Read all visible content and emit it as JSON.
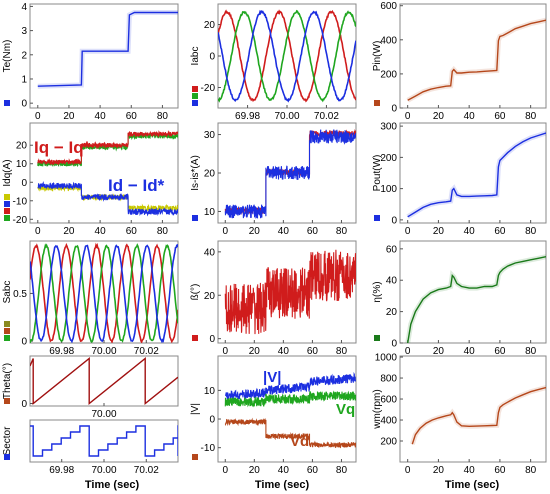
{
  "figure": {
    "xlabel": "Time (sec)"
  },
  "colors": {
    "red": "#d01c1c",
    "green": "#1fa61f",
    "blue": "#1c2fe0",
    "brown": "#b5471b",
    "yellow": "#c8c800",
    "darkgreen": "#1a7a1a",
    "darkred": "#a01010"
  },
  "chart_data": [
    {
      "id": "te",
      "type": "line",
      "ylabel": "Te(Nm)",
      "xlim": [
        -5,
        90
      ],
      "ylim": [
        -0.2,
        4.1
      ],
      "xticks": [
        0,
        20,
        40,
        60,
        80
      ],
      "yticks": [
        0,
        1,
        2,
        3,
        4
      ],
      "legend_swatches": [
        "blue"
      ],
      "series": [
        {
          "color": "blue",
          "x": [
            0,
            28,
            28.5,
            58,
            58.8,
            62,
            90
          ],
          "y": [
            0.7,
            0.75,
            2.15,
            2.15,
            3.65,
            3.75,
            3.75
          ]
        }
      ]
    },
    {
      "id": "iabc",
      "type": "line",
      "ylabel": "Iabc",
      "xlim": [
        69.965,
        70.035
      ],
      "ylim": [
        -33,
        33
      ],
      "xticks": [
        69.98,
        70.0,
        70.02
      ],
      "xticklabels": [
        "69.98",
        "70.00",
        "70.02"
      ],
      "yticks": [
        -20,
        0,
        20
      ],
      "legend_swatches": [
        "red",
        "green",
        "blue"
      ],
      "waves": [
        {
          "color": "red",
          "amp": 28,
          "period": 0.0265,
          "phase": 0.5
        },
        {
          "color": "green",
          "amp": 28,
          "period": 0.0265,
          "phase": -1.594
        },
        {
          "color": "blue",
          "amp": 28,
          "period": 0.0265,
          "phase": 2.594
        }
      ]
    },
    {
      "id": "pin",
      "type": "line",
      "ylabel": "Pin(W)",
      "xlim": [
        -5,
        90
      ],
      "ylim": [
        0,
        610
      ],
      "xticks": [
        0,
        20,
        40,
        60,
        80
      ],
      "yticks": [
        0,
        200,
        400,
        600
      ],
      "legend_swatches": [
        "brown"
      ],
      "series": [
        {
          "color": "brown",
          "x": [
            0,
            5,
            10,
            15,
            20,
            25,
            28,
            29,
            30,
            32,
            35,
            40,
            45,
            50,
            55,
            58,
            59,
            60,
            62,
            65,
            70,
            75,
            80,
            85,
            90
          ],
          "y": [
            45,
            70,
            95,
            110,
            120,
            128,
            130,
            215,
            225,
            205,
            205,
            210,
            212,
            215,
            218,
            220,
            395,
            420,
            425,
            440,
            465,
            480,
            495,
            505,
            515
          ]
        }
      ]
    },
    {
      "id": "idq",
      "type": "line",
      "ylabel": "Idq(A)",
      "xlim": [
        -5,
        90
      ],
      "ylim": [
        -22,
        32
      ],
      "xticks": [
        0,
        20,
        40,
        60,
        80
      ],
      "yticks": [
        -20,
        -10,
        0,
        10,
        20
      ],
      "legend_swatches": [
        "yellow",
        "blue",
        "red",
        "green"
      ],
      "annotations": [
        {
          "text": "Iq − Iq*",
          "color": "red"
        },
        {
          "text": "Id − Id*",
          "color": "blue"
        }
      ],
      "bands": [
        {
          "color": "green",
          "steps": [
            [
              0,
              28,
              10
            ],
            [
              28,
              58,
              19
            ],
            [
              58,
              90,
              25
            ]
          ],
          "noise": 1.4
        },
        {
          "color": "red",
          "steps": [
            [
              0,
              28,
              11
            ],
            [
              28,
              58,
              20
            ],
            [
              58,
              90,
              26
            ]
          ],
          "noise": 1.2
        },
        {
          "color": "yellow",
          "steps": [
            [
              0,
              28,
              -3
            ],
            [
              28,
              58,
              -8
            ],
            [
              58,
              90,
              -14
            ]
          ],
          "noise": 1.5
        },
        {
          "color": "blue",
          "steps": [
            [
              0,
              28,
              -2
            ],
            [
              28,
              58,
              -8
            ],
            [
              58,
              90,
              -16
            ]
          ],
          "noise": 1.6
        }
      ]
    },
    {
      "id": "is",
      "type": "line",
      "ylabel": "Is-is*(A)",
      "xlim": [
        -5,
        90
      ],
      "ylim": [
        7,
        33
      ],
      "xticks": [
        0,
        20,
        40,
        60,
        80
      ],
      "yticks": [
        10,
        20,
        30
      ],
      "legend_swatches": [
        "blue"
      ],
      "bands": [
        {
          "color": "red",
          "steps": [
            [
              0,
              28,
              10.2
            ],
            [
              28,
              58,
              20.2
            ],
            [
              58,
              90,
              30.2
            ]
          ],
          "noise": 0.8
        },
        {
          "color": "blue",
          "steps": [
            [
              0,
              28,
              10
            ],
            [
              28,
              58,
              20
            ],
            [
              58,
              90,
              29.5
            ]
          ],
          "noise": 1.8
        }
      ]
    },
    {
      "id": "pout",
      "type": "line",
      "ylabel": "Pout(W)",
      "xlim": [
        -5,
        90
      ],
      "ylim": [
        -10,
        310
      ],
      "xticks": [
        0,
        20,
        40,
        60,
        80
      ],
      "yticks": [
        0,
        100,
        200,
        300
      ],
      "legend_swatches": [
        "blue"
      ],
      "series": [
        {
          "color": "blue",
          "x": [
            0,
            5,
            10,
            15,
            20,
            25,
            28,
            29,
            30,
            32,
            35,
            40,
            45,
            50,
            55,
            58,
            59,
            60,
            62,
            65,
            70,
            75,
            80,
            85,
            90
          ],
          "y": [
            10,
            25,
            40,
            50,
            55,
            58,
            60,
            95,
            100,
            80,
            75,
            75,
            76,
            77,
            78,
            80,
            170,
            190,
            200,
            215,
            235,
            250,
            262,
            270,
            278
          ]
        }
      ]
    },
    {
      "id": "sabc",
      "type": "line",
      "ylabel": "Sabc",
      "xlim": [
        69.965,
        70.035
      ],
      "ylim": [
        -0.02,
        1.05
      ],
      "xticks": [
        69.98,
        70.0,
        70.02
      ],
      "xticklabels": [
        "69.98",
        "70.00",
        "70.02"
      ],
      "yticks": [
        0,
        0.5
      ],
      "yticklabels": [
        "0",
        "0.5"
      ],
      "legend_swatches": [
        "olive",
        "brown",
        "green"
      ],
      "waves": [
        {
          "color": "red",
          "amp": 0.5,
          "offset": 0.5,
          "period": 0.0143,
          "phase": 0.3
        },
        {
          "color": "green",
          "amp": 0.5,
          "offset": 0.5,
          "period": 0.0143,
          "phase": -1.794
        },
        {
          "color": "blue",
          "amp": 0.5,
          "offset": 0.5,
          "period": 0.0143,
          "phase": 2.394
        }
      ]
    },
    {
      "id": "beta",
      "type": "line",
      "ylabel": "ß(°)",
      "xlim": [
        -5,
        90
      ],
      "ylim": [
        -2,
        45
      ],
      "xticks": [
        0,
        20,
        40,
        60,
        80
      ],
      "yticks": [
        0,
        20,
        40
      ],
      "legend_swatches": [
        "red"
      ],
      "bands": [
        {
          "color": "red",
          "steps": [
            [
              0,
              28,
              14
            ],
            [
              28,
              58,
              21
            ],
            [
              58,
              90,
              29
            ]
          ],
          "noise": 12
        }
      ]
    },
    {
      "id": "eta",
      "type": "line",
      "ylabel": "η(%)",
      "xlim": [
        -5,
        90
      ],
      "ylim": [
        0,
        65
      ],
      "xticks": [
        0,
        20,
        40,
        60,
        80
      ],
      "yticks": [
        0,
        20,
        40,
        60
      ],
      "legend_swatches": [
        "darkgreen"
      ],
      "series": [
        {
          "color": "darkgreen",
          "x": [
            0,
            2,
            5,
            10,
            15,
            20,
            25,
            28,
            29,
            30,
            32,
            35,
            40,
            45,
            50,
            55,
            58,
            59,
            60,
            62,
            65,
            70,
            75,
            80,
            85,
            90
          ],
          "y": [
            0,
            12,
            20,
            28,
            32,
            34,
            35,
            36,
            43,
            42,
            38,
            36,
            35,
            35,
            36,
            36,
            37,
            43,
            45,
            47,
            49,
            51,
            52,
            53,
            54,
            55
          ]
        }
      ]
    },
    {
      "id": "theta",
      "type": "line",
      "ylabel": "Theta(°)",
      "xlim": [
        69.965,
        70.035
      ],
      "ylim": [
        -20,
        380
      ],
      "xticks": [
        70.0
      ],
      "xticklabels": [
        "70.00"
      ],
      "yticks": [
        0
      ],
      "yticklabels": [
        "0"
      ],
      "legend_swatches": [
        "brown"
      ],
      "saw": {
        "color": "darkred",
        "period": 0.0265,
        "start": 69.9665
      }
    },
    {
      "id": "v",
      "type": "line",
      "ylabel": "|V|",
      "xlim": [
        -5,
        90
      ],
      "ylim": [
        -15,
        22
      ],
      "xticks": [
        0,
        20,
        40,
        60,
        80
      ],
      "yticks": [
        -10,
        0,
        10
      ],
      "legend_swatches": [
        "brown"
      ],
      "annotations": [
        {
          "text": "|V|",
          "color": "blue"
        },
        {
          "text": "Vq",
          "color": "green"
        },
        {
          "text": "Vd",
          "color": "brown"
        }
      ],
      "bands": [
        {
          "color": "blue",
          "steps": [
            [
              0,
              28,
              8
            ],
            [
              28,
              58,
              10
            ],
            [
              58,
              90,
              13
            ]
          ],
          "noise": 1.6,
          "drift": 0.04
        },
        {
          "color": "green",
          "steps": [
            [
              0,
              28,
              6
            ],
            [
              28,
              58,
              7
            ],
            [
              58,
              90,
              8
            ]
          ],
          "noise": 1.6
        },
        {
          "color": "brown",
          "steps": [
            [
              0,
              28,
              -1
            ],
            [
              28,
              58,
              -6
            ],
            [
              58,
              90,
              -9
            ]
          ],
          "noise": 0.9
        }
      ]
    },
    {
      "id": "wm",
      "type": "line",
      "ylabel": "wm(rpm)",
      "xlim": [
        -5,
        90
      ],
      "ylim": [
        0,
        1010
      ],
      "xticks": [
        0,
        20,
        40,
        60,
        80
      ],
      "yticks": [
        200,
        400,
        600,
        800,
        1000
      ],
      "legend_swatches": [],
      "series": [
        {
          "color": "brown",
          "x": [
            3,
            5,
            8,
            12,
            16,
            20,
            25,
            28,
            29,
            30,
            32,
            35,
            40,
            45,
            50,
            55,
            58,
            59,
            60,
            62,
            65,
            70,
            75,
            80,
            85,
            90
          ],
          "y": [
            170,
            260,
            320,
            370,
            400,
            420,
            440,
            450,
            470,
            450,
            380,
            345,
            340,
            342,
            345,
            348,
            350,
            470,
            520,
            545,
            570,
            610,
            640,
            670,
            690,
            710
          ]
        }
      ]
    },
    {
      "id": "sector",
      "type": "line",
      "ylabel": "Sector",
      "xlim": [
        69.965,
        70.035
      ],
      "ylim": [
        0,
        7
      ],
      "xticks": [
        69.98,
        70.0,
        70.02
      ],
      "xticklabels": [
        "69.98",
        "70.00",
        "70.02"
      ],
      "yticks": [],
      "legend_swatches": [
        "blue"
      ],
      "staircase": {
        "color": "blue",
        "period": 0.0265,
        "start": 69.9665
      }
    }
  ]
}
